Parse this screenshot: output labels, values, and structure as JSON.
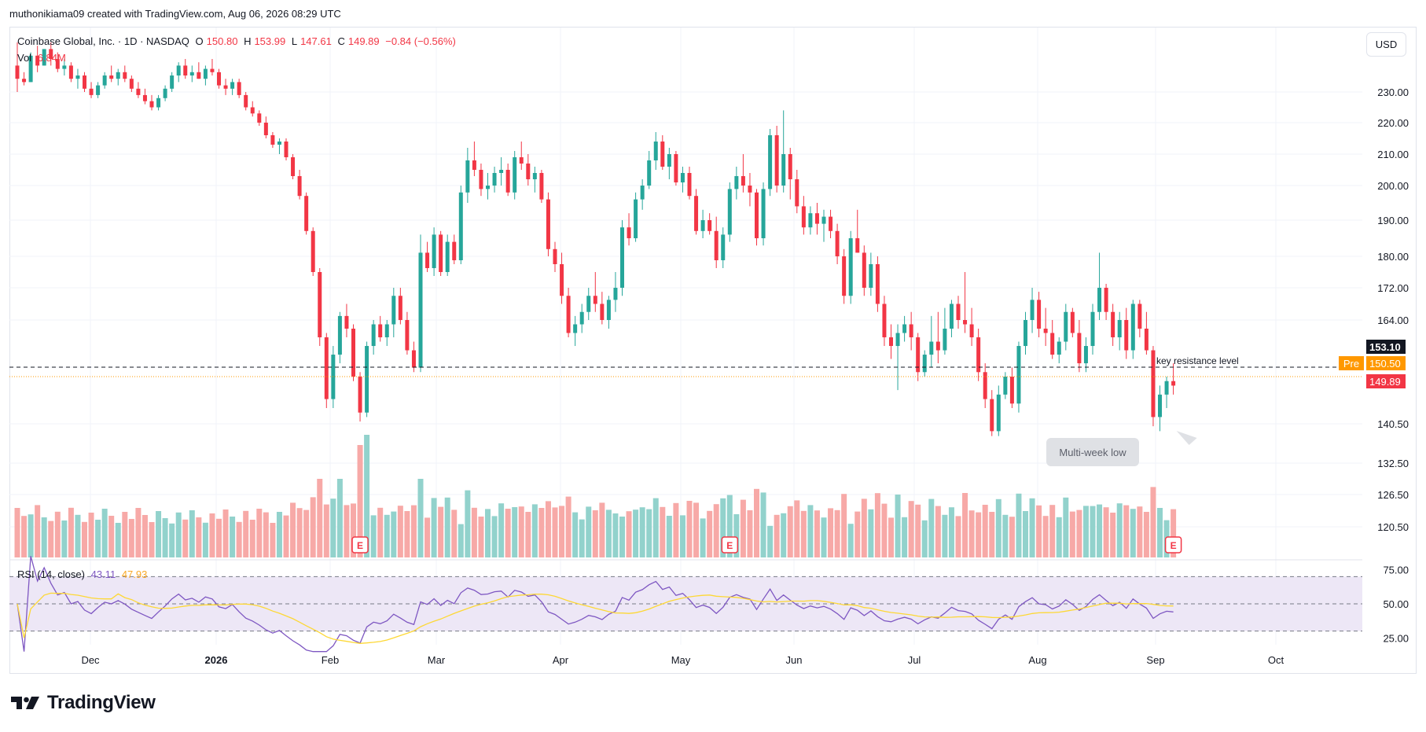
{
  "header": {
    "attribution": "muthonikiama09 created with TradingView.com, Aug 06, 2026 08:29 UTC"
  },
  "legend": {
    "symbol": "Coinbase Global, Inc. · 1D · NASDAQ",
    "open_label": "O",
    "open": "150.80",
    "high_label": "H",
    "high": "153.99",
    "low_label": "L",
    "low": "147.61",
    "close_label": "C",
    "close": "149.89",
    "change": "−0.84 (−0.56%)",
    "vol_label": "Vol",
    "vol": "6.84M"
  },
  "currency_button": "USD",
  "rsi_legend": {
    "label": "RSI (14, close)",
    "rsi": "43.11",
    "ma": "47.93"
  },
  "tags": {
    "last": "153.10",
    "pre_label": "Pre",
    "pre": "150.50",
    "close": "149.89"
  },
  "annotations": {
    "resistance": "key resistance level",
    "callout": "Multi-week low"
  },
  "earnings_marker": "E",
  "footer": {
    "brand": "TradingView"
  },
  "colors": {
    "up": "#26a69a",
    "down": "#f23645",
    "vol_up": "#92d2cc",
    "vol_down": "#f7a9a7",
    "rsi_line": "#7e57c2",
    "rsi_ma": "#fdd835",
    "rsi_band": "#ede7f6",
    "pre": "#ff9800",
    "grid": "#f0f3fa"
  },
  "chart_data": {
    "type": "candlestick",
    "price_axis_ticks": [
      "230.00",
      "220.00",
      "210.00",
      "200.00",
      "190.00",
      "180.00",
      "172.00",
      "164.00",
      "153.10",
      "140.50",
      "132.50",
      "126.50",
      "120.50"
    ],
    "rsi_axis_ticks": [
      "75.00",
      "50.00",
      "25.00"
    ],
    "x_ticks": [
      "Dec",
      "2026",
      "Feb",
      "Mar",
      "Apr",
      "May",
      "Jun",
      "Jul",
      "Aug",
      "Sep",
      "Oct"
    ],
    "resistance_level": 153.1,
    "last_close": 149.89,
    "pre_market": 150.5,
    "earnings_dates": [
      "2026-02-13",
      "2026-05-08",
      "2026-07-31"
    ],
    "rsi_levels": {
      "upper": 70,
      "middle": 50,
      "lower": 30
    },
    "candles_ohlc": [
      [
        238,
        245,
        230,
        234
      ],
      [
        234,
        236,
        232,
        233
      ],
      [
        233,
        242,
        233,
        241
      ],
      [
        241,
        244,
        236,
        238
      ],
      [
        238,
        243,
        238,
        243
      ],
      [
        243,
        245,
        238,
        240
      ],
      [
        240,
        242,
        236,
        237
      ],
      [
        237,
        240,
        235,
        238
      ],
      [
        238,
        239,
        233,
        234
      ],
      [
        234,
        237,
        231,
        235
      ],
      [
        235,
        236,
        230,
        231
      ],
      [
        231,
        233,
        228,
        229
      ],
      [
        229,
        233,
        228,
        232
      ],
      [
        232,
        236,
        231,
        235
      ],
      [
        235,
        238,
        233,
        234
      ],
      [
        234,
        237,
        232,
        236
      ],
      [
        236,
        238,
        233,
        234
      ],
      [
        234,
        235,
        230,
        231
      ],
      [
        231,
        233,
        228,
        229
      ],
      [
        229,
        231,
        226,
        227
      ],
      [
        227,
        229,
        224,
        225
      ],
      [
        225,
        229,
        224,
        228
      ],
      [
        228,
        232,
        227,
        231
      ],
      [
        231,
        236,
        230,
        235
      ],
      [
        235,
        239,
        233,
        238
      ],
      [
        238,
        240,
        234,
        235
      ],
      [
        235,
        238,
        233,
        236
      ],
      [
        236,
        239,
        234,
        234
      ],
      [
        234,
        238,
        232,
        237
      ],
      [
        237,
        240,
        235,
        236
      ],
      [
        236,
        237,
        231,
        232
      ],
      [
        232,
        234,
        229,
        231
      ],
      [
        231,
        234,
        229,
        233
      ],
      [
        233,
        234,
        228,
        229
      ],
      [
        229,
        230,
        224,
        225
      ],
      [
        225,
        227,
        222,
        223
      ],
      [
        223,
        224,
        219,
        220
      ],
      [
        220,
        222,
        215,
        216
      ],
      [
        216,
        217,
        212,
        213
      ],
      [
        213,
        215,
        210,
        214
      ],
      [
        214,
        215,
        208,
        209
      ],
      [
        209,
        210,
        202,
        203
      ],
      [
        203,
        205,
        196,
        197
      ],
      [
        197,
        198,
        186,
        187
      ],
      [
        187,
        188,
        175,
        176
      ],
      [
        176,
        177,
        158,
        160
      ],
      [
        160,
        161,
        144,
        146
      ],
      [
        146,
        158,
        144,
        156
      ],
      [
        156,
        166,
        154,
        165
      ],
      [
        165,
        168,
        160,
        162
      ],
      [
        162,
        163,
        150,
        151
      ],
      [
        151,
        152,
        141,
        143
      ],
      [
        143,
        159,
        142,
        158
      ],
      [
        158,
        164,
        156,
        163
      ],
      [
        163,
        165,
        159,
        160
      ],
      [
        160,
        164,
        158,
        163
      ],
      [
        163,
        172,
        160,
        170
      ],
      [
        170,
        172,
        163,
        164
      ],
      [
        164,
        166,
        156,
        157
      ],
      [
        157,
        159,
        152,
        153
      ],
      [
        153,
        186,
        152,
        181
      ],
      [
        181,
        184,
        176,
        177
      ],
      [
        177,
        188,
        175,
        186
      ],
      [
        186,
        187,
        175,
        176
      ],
      [
        176,
        186,
        175,
        184
      ],
      [
        184,
        186,
        178,
        179
      ],
      [
        179,
        200,
        178,
        198
      ],
      [
        198,
        212,
        195,
        208
      ],
      [
        208,
        214,
        203,
        205
      ],
      [
        205,
        207,
        197,
        199
      ],
      [
        199,
        204,
        196,
        200
      ],
      [
        200,
        206,
        198,
        204
      ],
      [
        204,
        209,
        200,
        205
      ],
      [
        205,
        207,
        197,
        198
      ],
      [
        198,
        211,
        196,
        209
      ],
      [
        209,
        214,
        205,
        207
      ],
      [
        207,
        210,
        200,
        202
      ],
      [
        202,
        206,
        198,
        204
      ],
      [
        204,
        205,
        195,
        196
      ],
      [
        196,
        198,
        180,
        182
      ],
      [
        182,
        184,
        176,
        178
      ],
      [
        178,
        181,
        168,
        170
      ],
      [
        170,
        172,
        160,
        161
      ],
      [
        161,
        165,
        158,
        163
      ],
      [
        163,
        168,
        161,
        166
      ],
      [
        166,
        172,
        164,
        170
      ],
      [
        170,
        176,
        166,
        168
      ],
      [
        168,
        171,
        163,
        164
      ],
      [
        164,
        170,
        162,
        169
      ],
      [
        169,
        176,
        166,
        172
      ],
      [
        172,
        190,
        170,
        188
      ],
      [
        188,
        192,
        183,
        185
      ],
      [
        185,
        198,
        184,
        196
      ],
      [
        196,
        202,
        193,
        200
      ],
      [
        200,
        211,
        199,
        208
      ],
      [
        208,
        217,
        205,
        214
      ],
      [
        214,
        216,
        205,
        206
      ],
      [
        206,
        212,
        202,
        210
      ],
      [
        210,
        211,
        200,
        201
      ],
      [
        201,
        206,
        198,
        204
      ],
      [
        204,
        206,
        196,
        197
      ],
      [
        197,
        199,
        186,
        187
      ],
      [
        187,
        193,
        185,
        190
      ],
      [
        190,
        192,
        186,
        187
      ],
      [
        187,
        191,
        177,
        179
      ],
      [
        179,
        188,
        177,
        186
      ],
      [
        186,
        201,
        184,
        199
      ],
      [
        199,
        206,
        196,
        203
      ],
      [
        203,
        210,
        198,
        200
      ],
      [
        200,
        204,
        194,
        198
      ],
      [
        198,
        199,
        183,
        185
      ],
      [
        185,
        201,
        183,
        199
      ],
      [
        199,
        218,
        197,
        216
      ],
      [
        216,
        219,
        198,
        200
      ],
      [
        200,
        224,
        198,
        210
      ],
      [
        210,
        212,
        196,
        202
      ],
      [
        202,
        205,
        192,
        194
      ],
      [
        194,
        197,
        186,
        188
      ],
      [
        188,
        194,
        186,
        192
      ],
      [
        192,
        195,
        186,
        189
      ],
      [
        189,
        193,
        184,
        191
      ],
      [
        191,
        193,
        185,
        187
      ],
      [
        187,
        189,
        178,
        180
      ],
      [
        180,
        182,
        168,
        170
      ],
      [
        170,
        187,
        168,
        185
      ],
      [
        185,
        193,
        181,
        181
      ],
      [
        181,
        183,
        170,
        172
      ],
      [
        172,
        181,
        170,
        178
      ],
      [
        178,
        180,
        166,
        168
      ],
      [
        168,
        170,
        158,
        160
      ],
      [
        160,
        163,
        155,
        158
      ],
      [
        158,
        163,
        148,
        161
      ],
      [
        161,
        165,
        159,
        163
      ],
      [
        163,
        166,
        157,
        160
      ],
      [
        160,
        161,
        150,
        152
      ],
      [
        152,
        157,
        151,
        156
      ],
      [
        156,
        165,
        153,
        159
      ],
      [
        159,
        166,
        154,
        157
      ],
      [
        157,
        167,
        156,
        162
      ],
      [
        162,
        169,
        160,
        168
      ],
      [
        168,
        170,
        162,
        164
      ],
      [
        164,
        176,
        161,
        163
      ],
      [
        163,
        167,
        158,
        160
      ],
      [
        160,
        162,
        150,
        152
      ],
      [
        152,
        154,
        144,
        146
      ],
      [
        146,
        148,
        138,
        139
      ],
      [
        139,
        149,
        138,
        147
      ],
      [
        147,
        152,
        146,
        151
      ],
      [
        151,
        153,
        144,
        145
      ],
      [
        145,
        159,
        143,
        158
      ],
      [
        158,
        166,
        156,
        164
      ],
      [
        164,
        172,
        161,
        169
      ],
      [
        169,
        171,
        160,
        162
      ],
      [
        162,
        167,
        158,
        161
      ],
      [
        161,
        164,
        155,
        156
      ],
      [
        156,
        160,
        154,
        159
      ],
      [
        159,
        168,
        157,
        166
      ],
      [
        166,
        167,
        160,
        161
      ],
      [
        161,
        164,
        152,
        154
      ],
      [
        154,
        160,
        152,
        158
      ],
      [
        158,
        168,
        156,
        166
      ],
      [
        166,
        181,
        164,
        172
      ],
      [
        172,
        173,
        164,
        166
      ],
      [
        166,
        168,
        158,
        160
      ],
      [
        160,
        166,
        157,
        164
      ],
      [
        164,
        167,
        155,
        157
      ],
      [
        157,
        169,
        155,
        168
      ],
      [
        168,
        169,
        160,
        162
      ],
      [
        162,
        166,
        156,
        157
      ],
      [
        157,
        158,
        140,
        142
      ],
      [
        142,
        149,
        139,
        147
      ],
      [
        147,
        151,
        144,
        150
      ],
      [
        150,
        154,
        147,
        149
      ]
    ]
  }
}
